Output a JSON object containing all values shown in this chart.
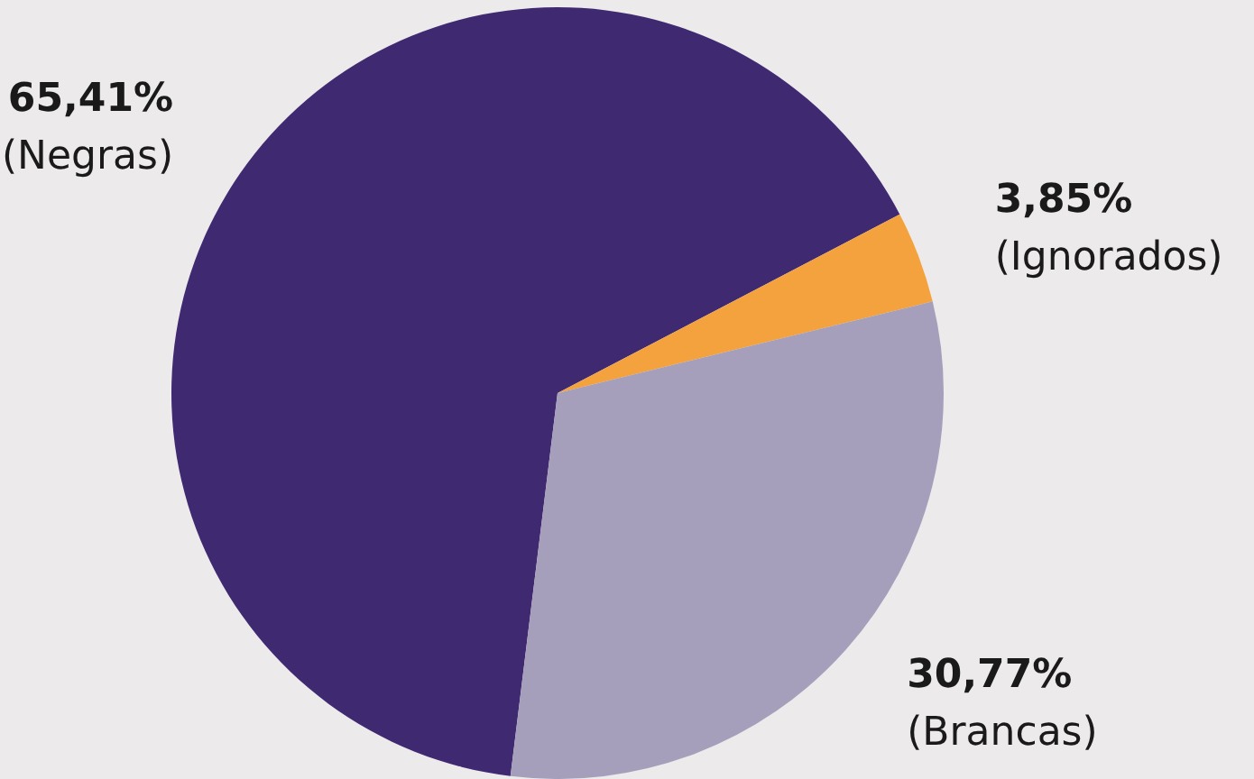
{
  "chart_data": {
    "type": "pie",
    "categories": [
      "(Negras)",
      "(Ignorados)",
      "(Brancas)"
    ],
    "values": [
      65.41,
      3.85,
      30.77
    ],
    "colors": [
      "#3f2a72",
      "#f4a23d",
      "#a69fbb"
    ],
    "value_labels": [
      "65,41%",
      "3,85%",
      "30,77%"
    ],
    "legend": false
  }
}
